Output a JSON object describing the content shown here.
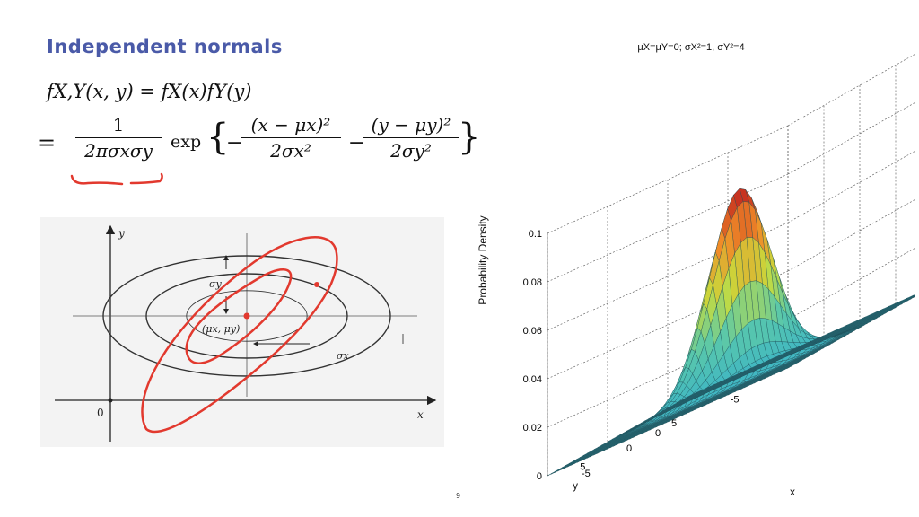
{
  "slide": {
    "title": "Independent normals",
    "page_number": "9"
  },
  "equation": {
    "line1": "f_{X,Y}(x,y) = f_X(x) f_Y(y)",
    "lhs": "fX,Y(x, y) = fX(x)fY(y)",
    "eq_sign": "=",
    "frac_num": "1",
    "frac_den": "2πσxσy",
    "exp_word": "exp",
    "term1_num": "(x − μx)²",
    "term1_den": "2σx²",
    "term2_num": "(y − μy)²",
    "term2_den": "2σy²"
  },
  "contour_diagram": {
    "axis_x_label": "x",
    "axis_y_label": "y",
    "origin_label": "0",
    "sigma_y_label": "σy",
    "sigma_x_label": "σx",
    "mean_label": "(μx, μy)",
    "annotation_color": "#e2392e"
  },
  "chart_data": {
    "type": "surface",
    "title": "μX=μY=0; σX²=1, σY²=4",
    "xlabel": "x",
    "ylabel": "y",
    "zlabel": "Probability Density",
    "z_ticks": [
      "0",
      "0.02",
      "0.04",
      "0.06",
      "0.08",
      "0.1"
    ],
    "y_ticks": [
      "5",
      "0",
      "-5"
    ],
    "x_ticks": [
      "-5",
      "0",
      "5"
    ],
    "zlim": [
      0,
      0.1
    ],
    "xlim": [
      -8,
      8
    ],
    "ylim": [
      -8,
      8
    ],
    "params": {
      "mu_x": 0,
      "mu_y": 0,
      "var_x": 1,
      "var_y": 4
    },
    "peak_value": 0.0796,
    "colormap": "jet",
    "base_color": "#3fb6c4"
  }
}
